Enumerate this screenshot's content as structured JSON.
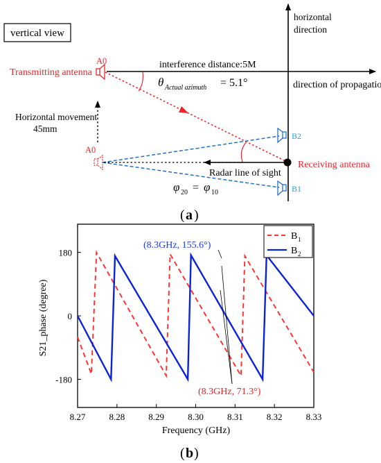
{
  "panel_a": {
    "view_label": "vertical view",
    "horizontal_direction_line1": "horizontal",
    "horizontal_direction_line2": "direction",
    "a0_top_label": "A0",
    "a0_bottom_label": "A0",
    "transmitting_antenna_label": "Transmitting antenna",
    "interference_distance_label": "interference distance:5M",
    "theta_symbol": "θ",
    "theta_subscript": "Actual azimuth",
    "theta_value": "= 5.1°",
    "direction_of_propagation_label": "direction of propagation",
    "horizontal_movement_line1": "Horizontal movement",
    "horizontal_movement_line2": "45mm",
    "b2_label": "B2",
    "b1_label": "B1",
    "receiving_antenna_label": "Receiving antenna",
    "radar_line_of_sight_label": "Radar line of sight",
    "phi_left": "φ",
    "phi_left_sub": "20",
    "phi_eq": "=",
    "phi_right": "φ",
    "phi_right_sub": "10",
    "caption_open": "(",
    "caption_letter": "a",
    "caption_close": ")",
    "colors": {
      "red": "#e8262b",
      "blue": "#1f6fd1",
      "cyan_label": "#1aa3d9",
      "black": "#000000"
    }
  },
  "panel_b": {
    "caption_open": "(",
    "caption_letter": "b",
    "caption_close": ")",
    "annotation_blue": "(8.3GHz, 155.6°)",
    "annotation_red": "(8.3GHz, 71.3°)",
    "chart_data": {
      "type": "line",
      "xlabel": "Frequency (GHz)",
      "ylabel": "S21_phase (degree)",
      "xlim": [
        8.27,
        8.33
      ],
      "ylim": [
        -260,
        260
      ],
      "xticks": [
        8.27,
        8.28,
        8.29,
        8.3,
        8.31,
        8.32,
        8.33
      ],
      "xtick_labels": [
        "8.27",
        "8.28",
        "8.29",
        "8.30",
        "8.31",
        "8.32",
        "8.33"
      ],
      "yticks": [
        -180,
        0,
        180
      ],
      "ytick_labels": [
        "-180",
        "0",
        "180"
      ],
      "legend_position": "top-right",
      "series": [
        {
          "name": "B",
          "name_sub": "1",
          "style": "dashed",
          "color": "#ff3333",
          "points": [
            [
              8.27,
              -60
            ],
            [
              8.2735,
              -165
            ],
            [
              8.2748,
              180
            ],
            [
              8.2925,
              -170
            ],
            [
              8.2935,
              175
            ],
            [
              8.3115,
              -170
            ],
            [
              8.3125,
              170
            ],
            [
              8.33,
              -160
            ]
          ]
        },
        {
          "name": "B",
          "name_sub": "2",
          "style": "solid",
          "color": "#0a22d8",
          "points": [
            [
              8.27,
              0
            ],
            [
              8.2785,
              -180
            ],
            [
              8.2795,
              170
            ],
            [
              8.298,
              -180
            ],
            [
              8.2988,
              172
            ],
            [
              8.317,
              -180
            ],
            [
              8.318,
              172
            ],
            [
              8.33,
              0
            ]
          ]
        }
      ]
    }
  }
}
